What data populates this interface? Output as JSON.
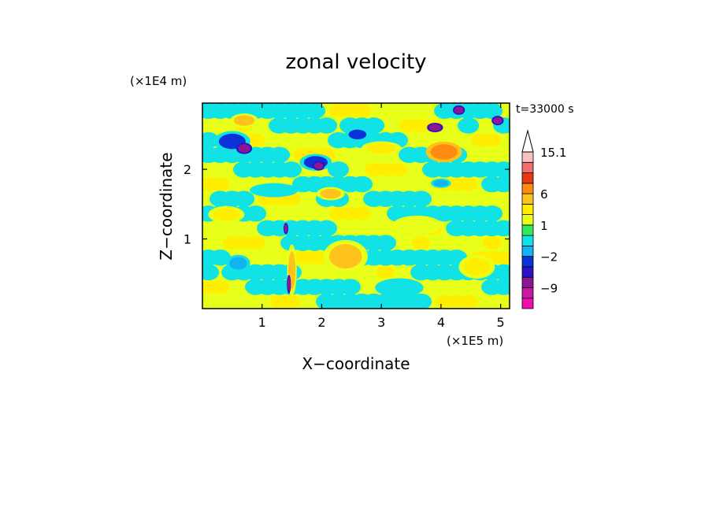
{
  "chart_data": {
    "type": "heatmap",
    "title": "zonal velocity",
    "xlabel": "X−coordinate",
    "ylabel": "Z−coordinate",
    "x_unit": "(×1E5 m)",
    "y_unit": "(×1E4 m)",
    "time_label": "t=33000 s",
    "xlim": [
      0,
      5.15
    ],
    "ylim": [
      0,
      2.95
    ],
    "x_ticks": [
      1,
      2,
      3,
      4,
      5
    ],
    "y_ticks": [
      1,
      2
    ],
    "colorbar": {
      "levels": [
        -15,
        -12,
        -9,
        -6,
        -3,
        -2,
        -1,
        0,
        1,
        2,
        3,
        6,
        9,
        12,
        15.1
      ],
      "colors": [
        "#ee0fb0",
        "#c81aa0",
        "#8c1696",
        "#2a14c6",
        "#0a34d8",
        "#10b4f0",
        "#10e2e6",
        "#33e85c",
        "#e8ff1a",
        "#ffee00",
        "#ffc21a",
        "#ff8a10",
        "#e83a10",
        "#f07070",
        "#f8c0c0"
      ],
      "tick_labels": [
        "15.1",
        "6",
        "1",
        "−2",
        "−9"
      ],
      "tick_values": [
        15.1,
        6,
        1,
        -2,
        -9
      ]
    },
    "features": [
      {
        "x": 4.05,
        "z": 2.25,
        "value": 8,
        "width": 0.45,
        "height": 0.22
      },
      {
        "x": 2.15,
        "z": 1.65,
        "value": 5,
        "width": 0.35,
        "height": 0.14
      },
      {
        "x": 0.7,
        "z": 2.7,
        "value": 5,
        "width": 0.35,
        "height": 0.15
      },
      {
        "x": 2.4,
        "z": 0.75,
        "value": 4,
        "width": 0.55,
        "height": 0.35
      },
      {
        "x": 0.4,
        "z": 1.35,
        "value": 3,
        "width": 0.45,
        "height": 0.18
      },
      {
        "x": 3.6,
        "z": 1.2,
        "value": 2,
        "width": 0.6,
        "height": 0.2
      },
      {
        "x": 3.0,
        "z": 2.3,
        "value": 3,
        "width": 0.5,
        "height": 0.15
      },
      {
        "x": 4.6,
        "z": 0.6,
        "value": 3,
        "width": 0.45,
        "height": 0.25
      },
      {
        "x": 1.5,
        "z": 0.55,
        "value": 4,
        "width": 0.12,
        "height": 0.55
      },
      {
        "x": 3.9,
        "z": 2.6,
        "value": -6,
        "width": 0.2,
        "height": 0.1
      },
      {
        "x": 4.3,
        "z": 2.85,
        "value": -6,
        "width": 0.15,
        "height": 0.1
      },
      {
        "x": 0.7,
        "z": 2.3,
        "value": -6,
        "width": 0.2,
        "height": 0.12
      },
      {
        "x": 1.95,
        "z": 2.05,
        "value": -6,
        "width": 0.15,
        "height": 0.1
      },
      {
        "x": 0.5,
        "z": 2.4,
        "value": -2,
        "width": 0.45,
        "height": 0.22
      },
      {
        "x": 1.9,
        "z": 2.1,
        "value": -2,
        "width": 0.4,
        "height": 0.18
      },
      {
        "x": 2.6,
        "z": 2.5,
        "value": -2,
        "width": 0.3,
        "height": 0.14
      },
      {
        "x": 0.6,
        "z": 0.65,
        "value": -1,
        "width": 0.3,
        "height": 0.18
      },
      {
        "x": 1.4,
        "z": 1.15,
        "value": -6,
        "width": 0.06,
        "height": 0.12
      },
      {
        "x": 1.45,
        "z": 0.35,
        "value": -6,
        "width": 0.05,
        "height": 0.2
      },
      {
        "x": 4.95,
        "z": 2.7,
        "value": -6,
        "width": 0.15,
        "height": 0.1
      },
      {
        "x": 4.0,
        "z": 1.8,
        "value": -1,
        "width": 0.25,
        "height": 0.1
      },
      {
        "x": 3.3,
        "z": 0.3,
        "value": -0.5,
        "width": 0.6,
        "height": 0.2
      },
      {
        "x": 1.2,
        "z": 1.7,
        "value": -0.5,
        "width": 0.6,
        "height": 0.15
      }
    ]
  }
}
